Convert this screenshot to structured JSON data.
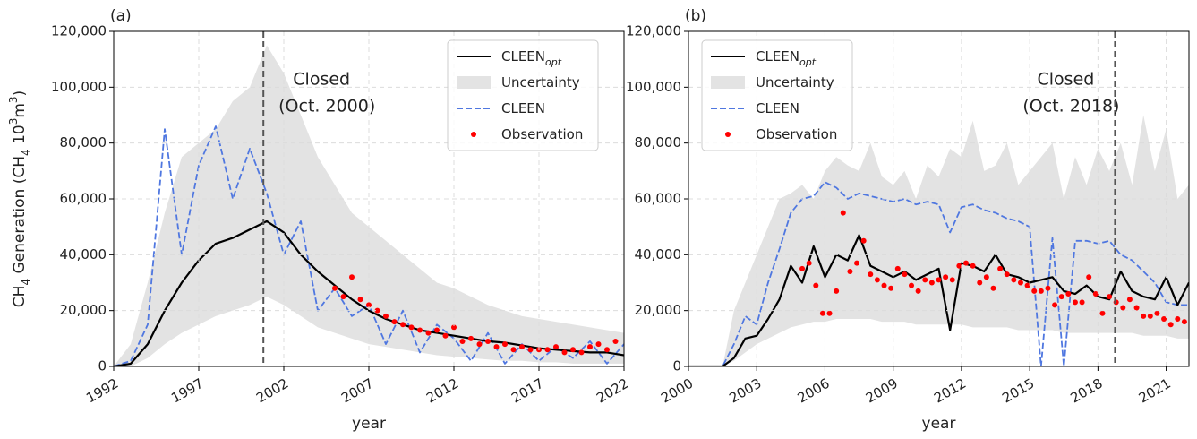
{
  "chart_data": [
    {
      "type": "line",
      "panel_label": "(a)",
      "xlabel": "year",
      "ylabel": [
        {
          "text": "CH"
        },
        {
          "text": "4",
          "shift": "sub"
        },
        {
          "text": " Generation (CH"
        },
        {
          "text": "4",
          "shift": "sub"
        },
        {
          "text": " 10"
        },
        {
          "text": "3",
          "shift": "super"
        },
        {
          "text": "m"
        },
        {
          "text": "3",
          "shift": "super"
        },
        {
          "text": ")"
        }
      ],
      "xlim": [
        1992,
        2022
      ],
      "xticks": [
        1992,
        1997,
        2002,
        2007,
        2012,
        2017,
        2022
      ],
      "ylim": [
        0,
        120000
      ],
      "yticks": [
        0,
        {
          "value": 20000,
          "label": "20,000"
        },
        {
          "value": 40000,
          "label": "40,000"
        },
        {
          "value": 60000,
          "label": "60,000"
        },
        {
          "value": 80000,
          "label": "80,000"
        },
        {
          "value": 100000,
          "label": "100,000"
        },
        {
          "value": 120000,
          "label": "120,000"
        }
      ],
      "grid": true,
      "legend": "upper right",
      "closure": {
        "x": 2000.8,
        "label": [
          "Closed",
          "(Oct. 2000)"
        ]
      },
      "x": [
        1992,
        1993,
        1994,
        1995,
        1996,
        1997,
        1998,
        1999,
        2000,
        2001,
        2002,
        2003,
        2004,
        2005,
        2006,
        2007,
        2008,
        2009,
        2010,
        2011,
        2012,
        2013,
        2014,
        2015,
        2016,
        2017,
        2018,
        2019,
        2020,
        2021,
        2022
      ],
      "series": [
        {
          "name": "CLEEN",
          "name_sub": "opt",
          "kind": "line",
          "style": "solid",
          "color": "#000000",
          "values": [
            0,
            1000,
            8000,
            20000,
            30000,
            38000,
            44000,
            46000,
            49000,
            52000,
            48000,
            40000,
            34000,
            29000,
            24000,
            20000,
            17000,
            15000,
            13000,
            12000,
            11000,
            10000,
            9000,
            8500,
            7500,
            6500,
            6000,
            5500,
            5000,
            5000,
            4000
          ]
        },
        {
          "name": "Uncertainty",
          "kind": "band",
          "color": "#e3e3e3",
          "upper": [
            0,
            8000,
            30000,
            55000,
            75000,
            80000,
            85000,
            95000,
            100000,
            115000,
            105000,
            90000,
            75000,
            65000,
            55000,
            50000,
            45000,
            40000,
            35000,
            30000,
            28000,
            25000,
            22000,
            20000,
            18000,
            17000,
            16000,
            15000,
            14000,
            13000,
            12000
          ],
          "lower": [
            0,
            0,
            3000,
            8000,
            12000,
            15000,
            18000,
            20000,
            22000,
            25000,
            22000,
            18000,
            14000,
            12000,
            10000,
            8000,
            7000,
            6000,
            5000,
            4000,
            3500,
            3000,
            2500,
            2000,
            2000,
            1500,
            1500,
            1000,
            1000,
            1000,
            1000
          ]
        },
        {
          "name": "CLEEN",
          "kind": "line",
          "style": "dashed",
          "color": "#4f77e0",
          "values": [
            0,
            2000,
            15000,
            85000,
            40000,
            72000,
            86000,
            60000,
            78000,
            62000,
            40000,
            52000,
            20000,
            28000,
            18000,
            22000,
            8000,
            20000,
            5000,
            15000,
            10000,
            2000,
            12000,
            1000,
            8000,
            2000,
            7000,
            3000,
            9000,
            1000,
            8000
          ]
        },
        {
          "name": "Observation",
          "kind": "scatter",
          "color": "#ff0000",
          "x": [
            2005,
            2005.5,
            2006,
            2006.5,
            2007,
            2007.5,
            2008,
            2008.5,
            2009,
            2009.5,
            2010,
            2010.5,
            2011,
            2011.5,
            2012,
            2012.5,
            2013,
            2013.5,
            2014,
            2014.5,
            2015,
            2015.5,
            2016,
            2016.5,
            2017,
            2017.5,
            2018,
            2018.5,
            2019,
            2019.5,
            2020,
            2020.5,
            2021,
            2021.5
          ],
          "values": [
            28000,
            25000,
            32000,
            24000,
            22000,
            20000,
            18000,
            16000,
            15000,
            14000,
            13000,
            12000,
            13000,
            11000,
            14000,
            9000,
            10000,
            8000,
            9000,
            7000,
            8000,
            6000,
            7000,
            6000,
            6000,
            6000,
            7000,
            5000,
            6000,
            5000,
            7000,
            8000,
            6000,
            9000
          ]
        }
      ]
    },
    {
      "type": "line",
      "panel_label": "(b)",
      "xlabel": "year",
      "xlim": [
        2000,
        2022
      ],
      "xticks": [
        2000,
        2003,
        2006,
        2009,
        2012,
        2015,
        2018,
        2021
      ],
      "ylim": [
        0,
        120000
      ],
      "yticks": [
        0,
        {
          "value": 20000,
          "label": "20,000"
        },
        {
          "value": 40000,
          "label": "40,000"
        },
        {
          "value": 60000,
          "label": "60,000"
        },
        {
          "value": 80000,
          "label": "80,000"
        },
        {
          "value": 100000,
          "label": "100,000"
        },
        {
          "value": 120000,
          "label": "120,000"
        }
      ],
      "grid": true,
      "legend": "upper left",
      "closure": {
        "x": 2018.75,
        "label": [
          "Closed",
          "(Oct. 2018)"
        ]
      },
      "x": [
        2000,
        2000.5,
        2001,
        2001.5,
        2002,
        2002.5,
        2003,
        2003.5,
        2004,
        2004.5,
        2005,
        2005.5,
        2006,
        2006.5,
        2007,
        2007.5,
        2008,
        2008.5,
        2009,
        2009.5,
        2010,
        2010.5,
        2011,
        2011.5,
        2012,
        2012.5,
        2013,
        2013.5,
        2014,
        2014.5,
        2015,
        2015.5,
        2016,
        2016.5,
        2017,
        2017.5,
        2018,
        2018.5,
        2019,
        2019.5,
        2020,
        2020.5,
        2021,
        2021.5,
        2022
      ],
      "series": [
        {
          "name": "CLEEN",
          "name_sub": "opt",
          "kind": "line",
          "style": "solid",
          "color": "#000000",
          "values": [
            0,
            0,
            0,
            0,
            3000,
            10000,
            11000,
            17000,
            24000,
            36000,
            30000,
            43000,
            32000,
            40000,
            38000,
            47000,
            36000,
            34000,
            32000,
            34000,
            31000,
            33000,
            35000,
            13000,
            37000,
            36000,
            34000,
            40000,
            33000,
            32000,
            30000,
            31000,
            32000,
            27000,
            26000,
            29000,
            25000,
            24000,
            34000,
            27000,
            25000,
            24000,
            32000,
            22000,
            30000
          ]
        },
        {
          "name": "Uncertainty",
          "kind": "band",
          "color": "#e3e3e3",
          "upper": [
            0,
            0,
            0,
            0,
            20000,
            30000,
            40000,
            50000,
            60000,
            62000,
            65000,
            60000,
            70000,
            75000,
            72000,
            70000,
            80000,
            68000,
            65000,
            70000,
            60000,
            72000,
            68000,
            78000,
            75000,
            88000,
            70000,
            72000,
            80000,
            65000,
            70000,
            75000,
            80000,
            60000,
            75000,
            65000,
            78000,
            70000,
            80000,
            65000,
            90000,
            70000,
            85000,
            60000,
            65000
          ],
          "lower": [
            0,
            0,
            0,
            0,
            2000,
            5000,
            8000,
            10000,
            12000,
            14000,
            15000,
            16000,
            16000,
            17000,
            17000,
            17000,
            17000,
            16000,
            16000,
            16000,
            15000,
            15000,
            15000,
            15000,
            15000,
            14000,
            14000,
            14000,
            14000,
            13000,
            13000,
            13000,
            13000,
            12000,
            12000,
            12000,
            12000,
            12000,
            12000,
            12000,
            11000,
            11000,
            11000,
            10000,
            10000
          ]
        },
        {
          "name": "CLEEN",
          "kind": "line",
          "style": "dashed",
          "color": "#4f77e0",
          "values": [
            0,
            0,
            0,
            0,
            8000,
            18000,
            15000,
            30000,
            42000,
            55000,
            60000,
            61000,
            66000,
            64000,
            60000,
            62000,
            61000,
            60000,
            59000,
            60000,
            58000,
            59000,
            58000,
            48000,
            57000,
            58000,
            56000,
            55000,
            53000,
            52000,
            50000,
            0,
            46000,
            0,
            45000,
            45000,
            44000,
            45000,
            40000,
            38000,
            34000,
            30000,
            23000,
            22000,
            22000
          ]
        },
        {
          "name": "Observation",
          "kind": "scatter",
          "color": "#ff0000",
          "x": [
            2005,
            2005.3,
            2005.6,
            2005.9,
            2006.2,
            2006.5,
            2006.8,
            2007.1,
            2007.4,
            2007.7,
            2008,
            2008.3,
            2008.6,
            2008.9,
            2009.2,
            2009.5,
            2009.8,
            2010.1,
            2010.4,
            2010.7,
            2011,
            2011.3,
            2011.6,
            2011.9,
            2012.2,
            2012.5,
            2012.8,
            2013.1,
            2013.4,
            2013.7,
            2014,
            2014.3,
            2014.6,
            2014.9,
            2015.2,
            2015.5,
            2015.8,
            2016.1,
            2016.4,
            2016.7,
            2017,
            2017.3,
            2017.6,
            2017.9,
            2018.2,
            2018.5,
            2018.8,
            2019.1,
            2019.4,
            2019.7,
            2020,
            2020.3,
            2020.6,
            2020.9,
            2021.2,
            2021.5,
            2021.8
          ],
          "values": [
            35000,
            37000,
            29000,
            19000,
            19000,
            27000,
            55000,
            34000,
            37000,
            45000,
            33000,
            31000,
            29000,
            28000,
            35000,
            33000,
            29000,
            27000,
            31000,
            30000,
            31000,
            32000,
            31000,
            36000,
            37000,
            36000,
            30000,
            32000,
            28000,
            35000,
            33000,
            31000,
            30000,
            29000,
            27000,
            27000,
            28000,
            22000,
            25000,
            26000,
            23000,
            23000,
            32000,
            26000,
            19000,
            25000,
            23000,
            21000,
            24000,
            21000,
            18000,
            18000,
            19000,
            17000,
            15000,
            17000,
            16000
          ]
        }
      ]
    }
  ]
}
